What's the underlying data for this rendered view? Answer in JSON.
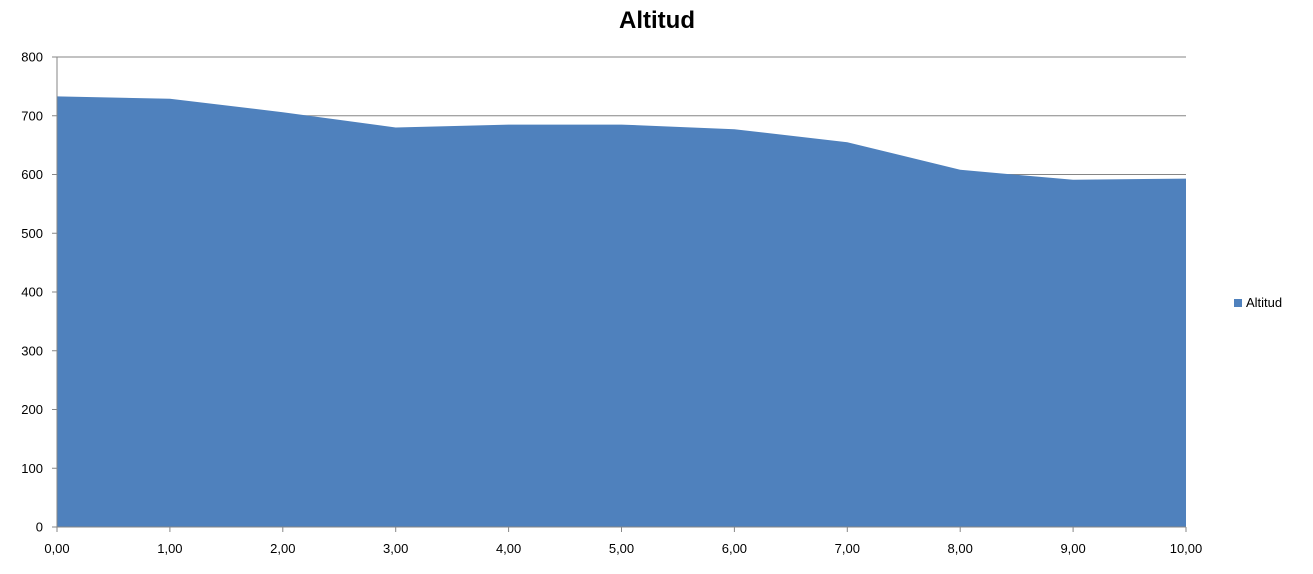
{
  "chart_data": {
    "type": "area",
    "title": "Altitud",
    "xlabel": "",
    "ylabel": "",
    "x": [
      0,
      1,
      2,
      3,
      4,
      5,
      6,
      7,
      8,
      9,
      10
    ],
    "x_tick_labels": [
      "0,00",
      "1,00",
      "2,00",
      "3,00",
      "4,00",
      "5,00",
      "6,00",
      "7,00",
      "8,00",
      "9,00",
      "10,00"
    ],
    "series": [
      {
        "name": "Altitud",
        "color": "#4F81BD",
        "values": [
          733,
          729,
          706,
          680,
          685,
          685,
          677,
          655,
          608,
          591,
          593
        ]
      }
    ],
    "xlim": [
      0,
      10
    ],
    "ylim": [
      0,
      800
    ],
    "y_ticks": [
      0,
      100,
      200,
      300,
      400,
      500,
      600,
      700,
      800
    ],
    "y_tick_labels": [
      "0",
      "100",
      "200",
      "300",
      "400",
      "500",
      "600",
      "700",
      "800"
    ],
    "grid": "horizontal",
    "gridline_color": "#868686",
    "legend_position": "right"
  }
}
